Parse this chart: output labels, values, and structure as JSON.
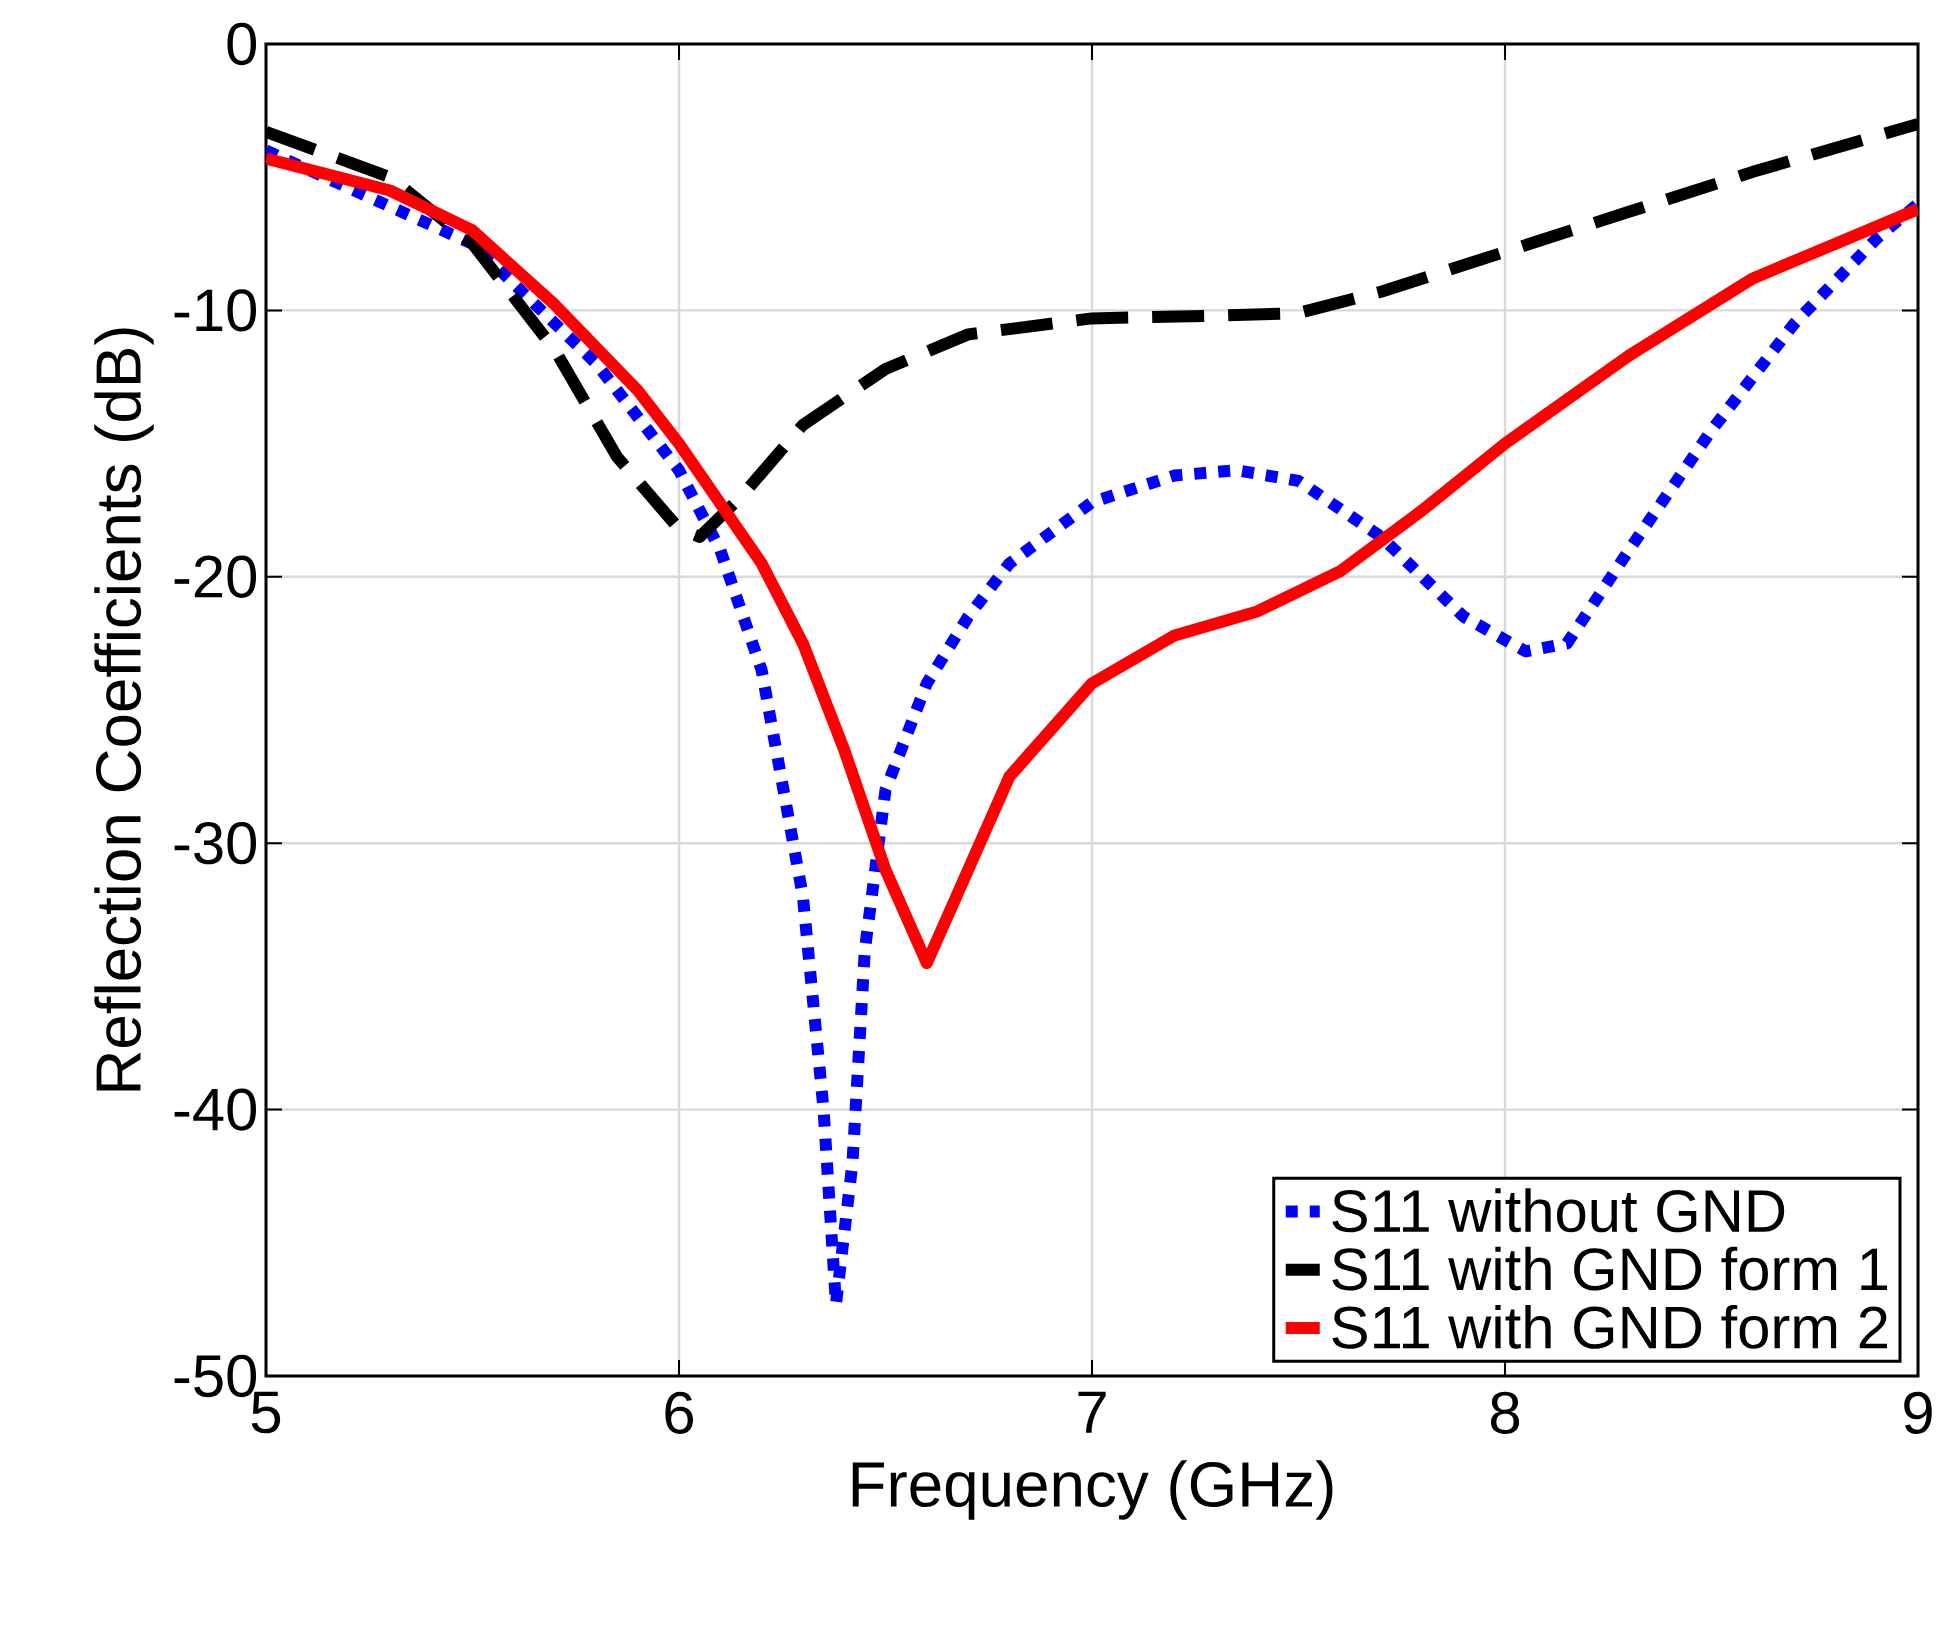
{
  "chart_data": {
    "type": "line",
    "xlabel": "Frequency (GHz)",
    "ylabel": "Reflection Coefficients (dB)",
    "xlim": [
      5,
      9
    ],
    "ylim": [
      -50,
      0
    ],
    "xticks": [
      5,
      6,
      7,
      8,
      9
    ],
    "yticks": [
      -50,
      -40,
      -30,
      -20,
      -10,
      0
    ],
    "grid": true,
    "legend": "bottom right",
    "series": [
      {
        "name": "S11 without GND",
        "color": "#0000ff",
        "line_style": "dotted",
        "x": [
          5.0,
          5.5,
          5.8,
          6.0,
          6.1,
          6.2,
          6.3,
          6.35,
          6.38,
          6.42,
          6.45,
          6.5,
          6.6,
          6.7,
          6.8,
          7.0,
          7.2,
          7.35,
          7.5,
          7.7,
          7.9,
          8.05,
          8.15,
          8.3,
          8.5,
          8.7,
          8.9,
          9.0
        ],
        "values": [
          -4,
          -7.5,
          -12,
          -16,
          -19,
          -23.5,
          -32,
          -40,
          -47.3,
          -42,
          -34,
          -28,
          -24,
          -21.5,
          -19.5,
          -17.2,
          -16.2,
          -16.0,
          -16.4,
          -18.5,
          -21.5,
          -22.8,
          -22.5,
          -19,
          -14.5,
          -10.5,
          -7.3,
          -6
        ]
      },
      {
        "name": "S11 with GND form 1",
        "color": "#000000",
        "line_style": "dashed",
        "x": [
          5.0,
          5.3,
          5.5,
          5.7,
          5.85,
          6.0,
          6.05,
          6.15,
          6.3,
          6.5,
          6.7,
          7.0,
          7.3,
          7.5,
          7.7,
          8.0,
          8.3,
          8.6,
          9.0
        ],
        "values": [
          -3.3,
          -5,
          -7.5,
          -11.5,
          -15.5,
          -18.2,
          -18.5,
          -17,
          -14.3,
          -12.2,
          -10.9,
          -10.3,
          -10.2,
          -10.1,
          -9.3,
          -7.8,
          -6.3,
          -4.8,
          -3
        ]
      },
      {
        "name": "S11 with GND form 2",
        "color": "#ff0000",
        "line_style": "solid",
        "x": [
          5.0,
          5.3,
          5.5,
          5.7,
          5.9,
          6.0,
          6.2,
          6.3,
          6.4,
          6.5,
          6.6,
          6.7,
          6.8,
          7.0,
          7.2,
          7.4,
          7.6,
          7.8,
          8.0,
          8.3,
          8.6,
          9.0
        ],
        "values": [
          -4.3,
          -5.5,
          -7,
          -9.8,
          -13,
          -15,
          -19.5,
          -22.5,
          -26.5,
          -31,
          -34.5,
          -31,
          -27.5,
          -24,
          -22.2,
          -21.3,
          -19.8,
          -17.5,
          -15,
          -11.7,
          -8.8,
          -6.2
        ]
      }
    ]
  }
}
